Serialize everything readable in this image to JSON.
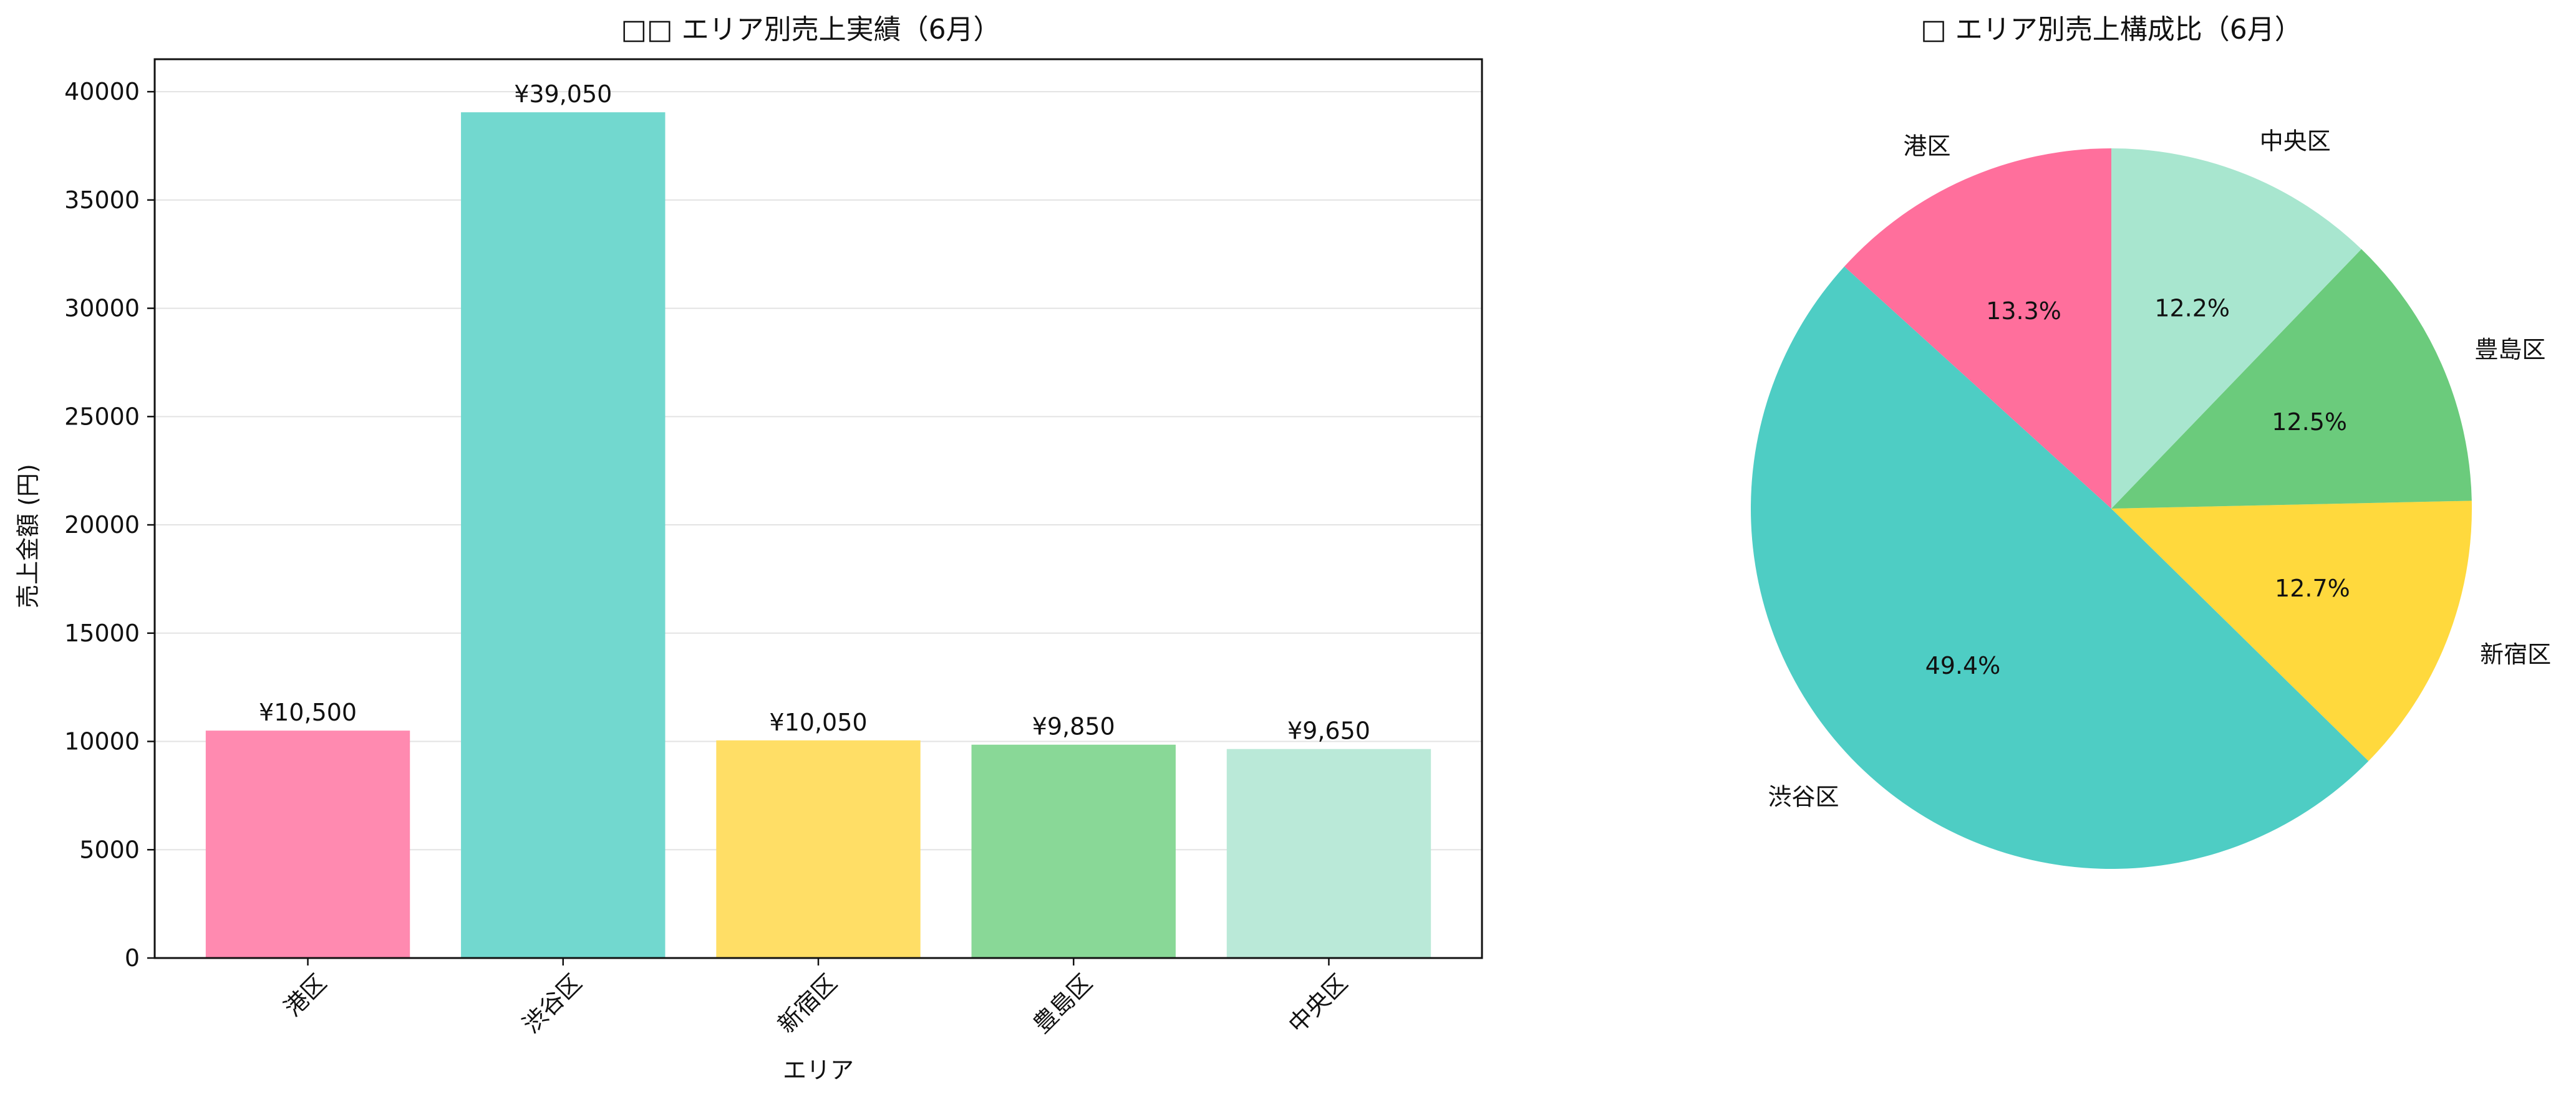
{
  "chart_data": [
    {
      "type": "bar",
      "title": "□□ エリア別売上実績（6月）",
      "xlabel": "エリア",
      "ylabel": "売上金額 (円)",
      "categories": [
        "港区",
        "渋谷区",
        "新宿区",
        "豊島区",
        "中央区"
      ],
      "values": [
        10500,
        39050,
        10050,
        9850,
        9650
      ],
      "value_labels": [
        "¥10,500",
        "¥39,050",
        "¥10,050",
        "¥9,850",
        "¥9,650"
      ],
      "colors": [
        "#ff8ab0",
        "#72d8cf",
        "#ffde66",
        "#89d897",
        "#bae9d8"
      ],
      "ylim": [
        0,
        41500
      ],
      "yticks": [
        0,
        5000,
        10000,
        15000,
        20000,
        25000,
        30000,
        35000,
        40000
      ],
      "ytick_labels": [
        "0",
        "5000",
        "10000",
        "15000",
        "20000",
        "25000",
        "30000",
        "35000",
        "40000"
      ],
      "grid": "horizontal",
      "x_tick_rotation": 45
    },
    {
      "type": "pie",
      "title": "□ エリア別売上構成比（6月）",
      "labels": [
        "港区",
        "渋谷区",
        "新宿区",
        "豊島区",
        "中央区"
      ],
      "values": [
        10500,
        39050,
        10050,
        9850,
        9650
      ],
      "pct_labels": [
        "13.3%",
        "49.4%",
        "12.7%",
        "12.5%",
        "12.2%"
      ],
      "colors": [
        "#ff6f9c",
        "#4ecdc4",
        "#ffd93d",
        "#6bcb7c",
        "#a8e6cf"
      ],
      "start_angle_deg": 90,
      "direction": "counterclockwise"
    }
  ]
}
